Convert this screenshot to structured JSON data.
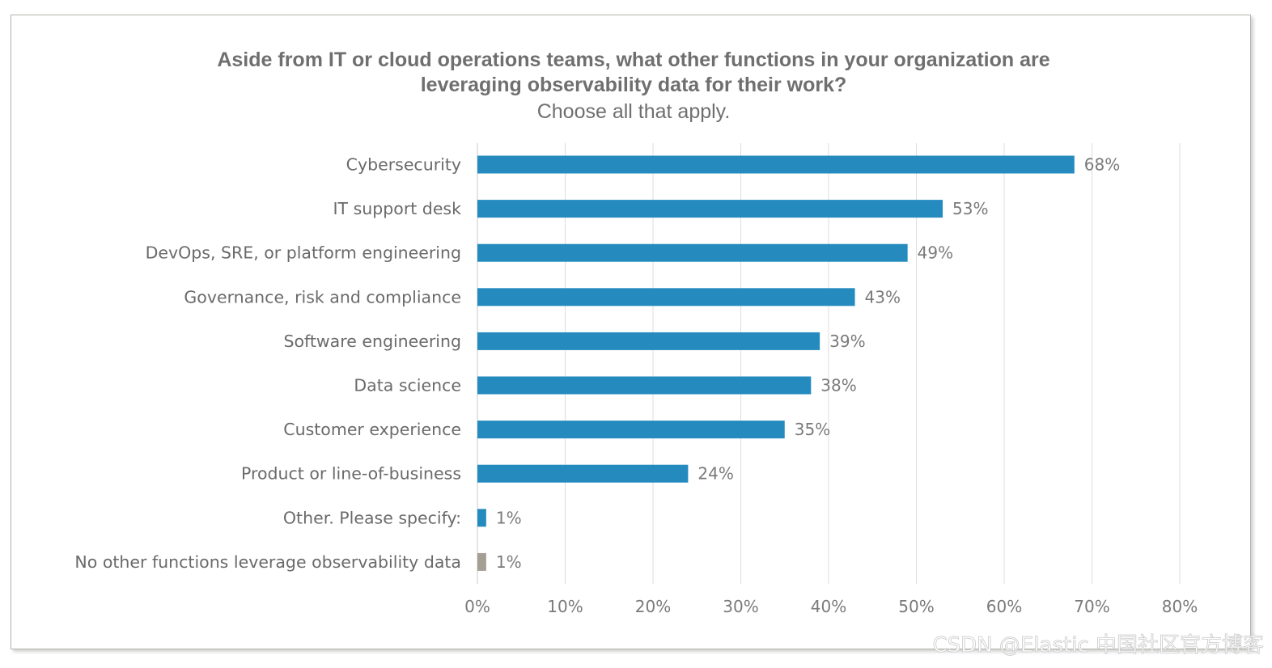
{
  "chart_data": {
    "type": "bar",
    "orientation": "horizontal",
    "title": [
      "Aside from IT or cloud operations teams, what other functions in your organization are",
      "leveraging observability data for their work?"
    ],
    "subtitle": "Choose all that apply.",
    "categories": [
      "Cybersecurity",
      "IT support desk",
      "DevOps, SRE, or platform engineering",
      "Governance, risk and compliance",
      "Software engineering",
      "Data science",
      "Customer experience",
      "Product or line-of-business",
      "Other. Please specify:",
      "No other functions leverage observability data"
    ],
    "values": [
      68,
      53,
      49,
      43,
      39,
      38,
      35,
      24,
      1,
      1
    ],
    "value_labels": [
      "68%",
      "53%",
      "49%",
      "43%",
      "39%",
      "38%",
      "35%",
      "24%",
      "1%",
      "1%"
    ],
    "bar_colors": [
      "#258bbf",
      "#258bbf",
      "#258bbf",
      "#258bbf",
      "#258bbf",
      "#258bbf",
      "#258bbf",
      "#258bbf",
      "#258bbf",
      "#a49e93"
    ],
    "xlim": [
      0,
      80
    ],
    "x_ticks": [
      0,
      10,
      20,
      30,
      40,
      50,
      60,
      70,
      80
    ],
    "x_tick_labels": [
      "0%",
      "10%",
      "20%",
      "30%",
      "40%",
      "50%",
      "60%",
      "70%",
      "80%"
    ],
    "grid": true,
    "legend": "none"
  },
  "watermark": "CSDN @Elastic 中国社区官方博客"
}
